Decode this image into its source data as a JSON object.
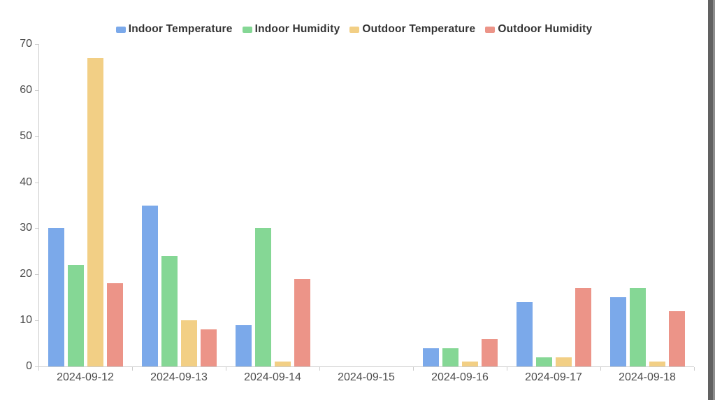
{
  "chart_data": {
    "type": "bar",
    "title": "",
    "xlabel": "",
    "ylabel": "",
    "categories": [
      "2024-09-12",
      "2024-09-13",
      "2024-09-14",
      "2024-09-15",
      "2024-09-16",
      "2024-09-17",
      "2024-09-18"
    ],
    "series": [
      {
        "name": "Indoor Temperature",
        "color": "#7BA9EA",
        "values": [
          30,
          35,
          9,
          0,
          4,
          14,
          15
        ]
      },
      {
        "name": "Indoor Humidity",
        "color": "#85D795",
        "values": [
          22,
          24,
          30,
          0,
          4,
          2,
          17
        ]
      },
      {
        "name": "Outdoor Temperature",
        "color": "#F2CF85",
        "values": [
          67,
          10,
          1,
          0,
          1,
          2,
          1
        ]
      },
      {
        "name": "Outdoor Humidity",
        "color": "#EC9488",
        "values": [
          18,
          8,
          19,
          0,
          6,
          17,
          12
        ]
      }
    ],
    "ylim": [
      0,
      70
    ],
    "y_ticks": [
      0,
      10,
      20,
      30,
      40,
      50,
      60,
      70
    ],
    "grid": false,
    "legend_position": "top",
    "colors": {
      "axis_line": "#cccccc",
      "axis_label": "#4d4d4d",
      "legend_text": "#333333",
      "background": "#ffffff"
    }
  }
}
